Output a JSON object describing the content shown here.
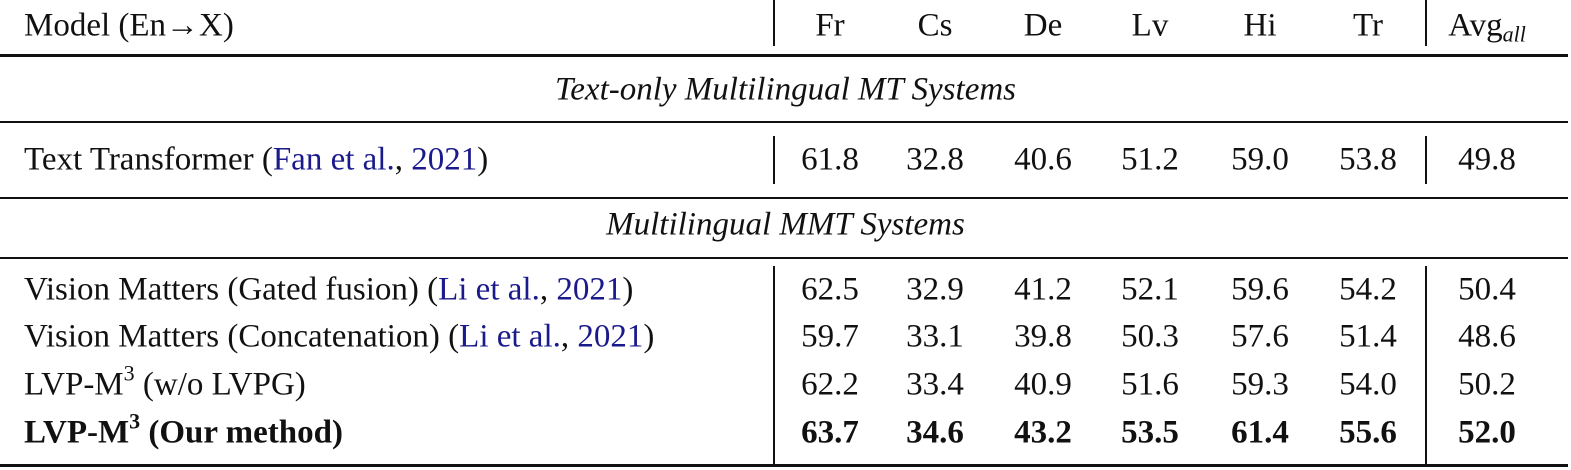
{
  "header": {
    "model": "Model (En→X)",
    "languages": [
      "Fr",
      "Cs",
      "De",
      "Lv",
      "Hi",
      "Tr"
    ],
    "avg": "Avg",
    "avg_sub": "all"
  },
  "sections": [
    {
      "title": "Text-only Multilingual MT Systems",
      "rows": [
        {
          "name": "Text Transformer (",
          "cite_author": "Fan et al.",
          "cite_year": "2021",
          "suffix": ")",
          "values": [
            "61.8",
            "32.8",
            "40.6",
            "51.2",
            "59.0",
            "53.8"
          ],
          "avg": "49.8"
        }
      ]
    },
    {
      "title": "Multilingual MMT Systems",
      "rows": [
        {
          "name": "Vision Matters (Gated fusion) (",
          "cite_author": "Li et al.",
          "cite_year": "2021",
          "suffix": ")",
          "values": [
            "62.5",
            "32.9",
            "41.2",
            "52.1",
            "59.6",
            "54.2"
          ],
          "avg": "50.4"
        },
        {
          "name": "Vision Matters (Concatenation) (",
          "cite_author": "Li et al.",
          "cite_year": "2021",
          "suffix": ")",
          "values": [
            "59.7",
            "33.1",
            "39.8",
            "50.3",
            "57.6",
            "51.4"
          ],
          "avg": "48.6"
        },
        {
          "name": "LVP-M",
          "sup": "3",
          "suffix": " (w/o LVPG)",
          "values": [
            "62.2",
            "33.4",
            "40.9",
            "51.6",
            "59.3",
            "54.0"
          ],
          "avg": "50.2"
        },
        {
          "name": "LVP-M",
          "sup": "3",
          "suffix": " (Our method)",
          "bold": true,
          "values": [
            "63.7",
            "34.6",
            "43.2",
            "53.5",
            "61.4",
            "55.6"
          ],
          "avg": "52.0"
        }
      ]
    }
  ],
  "colors": {
    "citation": "#1a1a8c"
  }
}
